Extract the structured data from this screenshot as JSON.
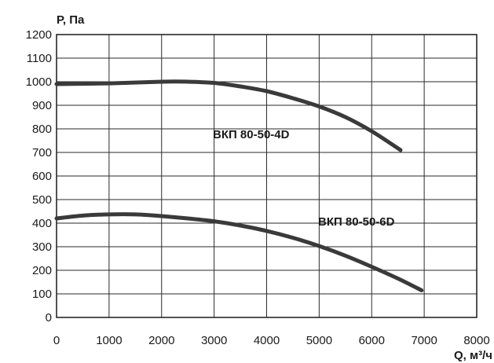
{
  "chart_data": {
    "type": "line",
    "xlabel": "Q, м³/ч",
    "ylabel": "Р, Па",
    "xlim": [
      0,
      8000
    ],
    "ylim": [
      0,
      1200
    ],
    "x_ticks": [
      "0",
      "1000",
      "2000",
      "3000",
      "4000",
      "5000",
      "6000",
      "7000",
      "8000"
    ],
    "y_ticks": [
      "0",
      "100",
      "200",
      "300",
      "400",
      "500",
      "600",
      "700",
      "800",
      "900",
      "1000",
      "1100",
      "1200"
    ],
    "grid": true,
    "series": [
      {
        "name": "ВКП 80-50-4D",
        "x": [
          0,
          1000,
          2000,
          2500,
          3000,
          3500,
          4000,
          4500,
          5000,
          5500,
          6000,
          6550
        ],
        "y": [
          990,
          993,
          1000,
          1000,
          995,
          980,
          960,
          930,
          895,
          850,
          790,
          710
        ]
      },
      {
        "name": "ВКП 80-50-6D",
        "x": [
          0,
          500,
          1000,
          1500,
          2000,
          2500,
          3000,
          3500,
          4000,
          4500,
          5000,
          5500,
          6000,
          6500,
          6950
        ],
        "y": [
          420,
          432,
          437,
          437,
          430,
          420,
          408,
          390,
          367,
          338,
          303,
          262,
          215,
          165,
          115
        ]
      }
    ],
    "color": "#3a3a3a"
  }
}
